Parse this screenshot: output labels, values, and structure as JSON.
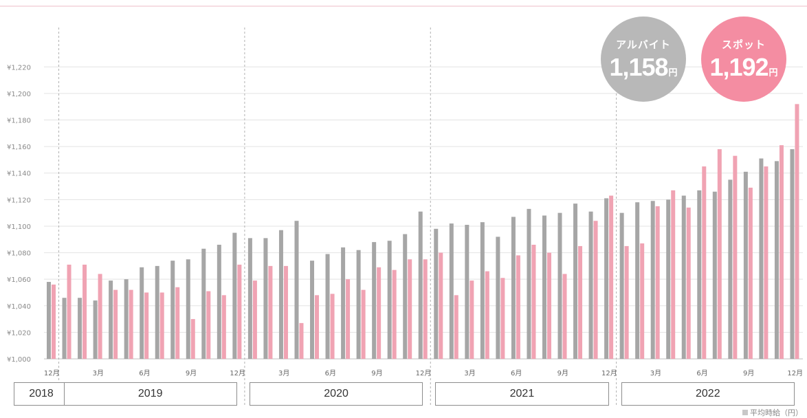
{
  "chart_data": {
    "type": "bar",
    "ylim": [
      1000,
      1230
    ],
    "y_ticks": [
      1000,
      1020,
      1040,
      1060,
      1080,
      1100,
      1120,
      1140,
      1160,
      1180,
      1200,
      1220
    ],
    "y_tick_labels": [
      "¥1,000",
      "¥1,020",
      "¥1,040",
      "¥1,060",
      "¥1,080",
      "¥1,100",
      "¥1,120",
      "¥1,140",
      "¥1,160",
      "¥1,180",
      "¥1,200",
      "¥1,220"
    ],
    "grid": true,
    "x": [
      "2018-12",
      "2019-01",
      "2019-02",
      "2019-03",
      "2019-04",
      "2019-05",
      "2019-06",
      "2019-07",
      "2019-08",
      "2019-09",
      "2019-10",
      "2019-11",
      "2019-12",
      "2020-01",
      "2020-02",
      "2020-03",
      "2020-04",
      "2020-05",
      "2020-06",
      "2020-07",
      "2020-08",
      "2020-09",
      "2020-10",
      "2020-11",
      "2020-12",
      "2021-01",
      "2021-02",
      "2021-03",
      "2021-04",
      "2021-05",
      "2021-06",
      "2021-07",
      "2021-08",
      "2021-09",
      "2021-10",
      "2021-11",
      "2021-12",
      "2022-01",
      "2022-02",
      "2022-03",
      "2022-04",
      "2022-05",
      "2022-06",
      "2022-07",
      "2022-08",
      "2022-09",
      "2022-10",
      "2022-11",
      "2022-12"
    ],
    "x_tick_labels": [
      {
        "index": 0,
        "label": "12月"
      },
      {
        "index": 3,
        "label": "3月"
      },
      {
        "index": 6,
        "label": "6月"
      },
      {
        "index": 9,
        "label": "9月"
      },
      {
        "index": 12,
        "label": "12月"
      },
      {
        "index": 15,
        "label": "3月"
      },
      {
        "index": 18,
        "label": "6月"
      },
      {
        "index": 21,
        "label": "9月"
      },
      {
        "index": 24,
        "label": "12月"
      },
      {
        "index": 27,
        "label": "3月"
      },
      {
        "index": 30,
        "label": "6月"
      },
      {
        "index": 33,
        "label": "9月"
      },
      {
        "index": 36,
        "label": "12月"
      },
      {
        "index": 39,
        "label": "3月"
      },
      {
        "index": 42,
        "label": "6月"
      },
      {
        "index": 45,
        "label": "9月"
      },
      {
        "index": 48,
        "label": "12月"
      }
    ],
    "series": [
      {
        "values": [
          1058,
          1046,
          1046,
          1044,
          1059,
          1060,
          1069,
          1070,
          1074,
          1075,
          1083,
          1086,
          1095,
          1091,
          1091,
          1097,
          1104,
          1074,
          1079,
          1084,
          1082,
          1088,
          1089,
          1094,
          1111,
          1098,
          1102,
          1101,
          1103,
          1092,
          1107,
          1113,
          1108,
          1110,
          1117,
          1111,
          1121,
          1110,
          1118,
          1119,
          1120,
          1123,
          1127,
          1126,
          1135,
          1141,
          1151,
          1149,
          1158
        ]
      },
      {
        "values": [
          1056,
          1071,
          1071,
          1064,
          1052,
          1052,
          1050,
          1050,
          1054,
          1030,
          1051,
          1048,
          1071,
          1059,
          1070,
          1070,
          1027,
          1048,
          1049,
          1060,
          1052,
          1069,
          1067,
          1075,
          1075,
          1080,
          1048,
          1059,
          1066,
          1061,
          1078,
          1086,
          1080,
          1064,
          1085,
          1104,
          1123,
          1085,
          1087,
          1115,
          1127,
          1114,
          1145,
          1158,
          1153,
          1129,
          1145,
          1161,
          1192
        ]
      }
    ],
    "colors": {
      "gray": "#a6a6a6",
      "pink": "#f0a3b3",
      "badge_gray": "#b8b8b8",
      "badge_pink": "#f48da2"
    },
    "years": [
      {
        "label": "2018",
        "start": 0,
        "end": 0
      },
      {
        "label": "2019",
        "start": 1,
        "end": 12
      },
      {
        "label": "2020",
        "start": 13,
        "end": 24
      },
      {
        "label": "2021",
        "start": 25,
        "end": 36
      },
      {
        "label": "2022",
        "start": 37,
        "end": 48
      }
    ],
    "year_separators_after_index": [
      0,
      12,
      24,
      36
    ],
    "badges": [
      {
        "label": "アルバイト",
        "value": "1,158",
        "unit": "円",
        "color": "#b8b8b8"
      },
      {
        "label": "スポット",
        "value": "1,192",
        "unit": "円",
        "color": "#f48da2"
      }
    ],
    "legend": {
      "label": "平均時給（円）",
      "placement": "bottom-right"
    }
  }
}
